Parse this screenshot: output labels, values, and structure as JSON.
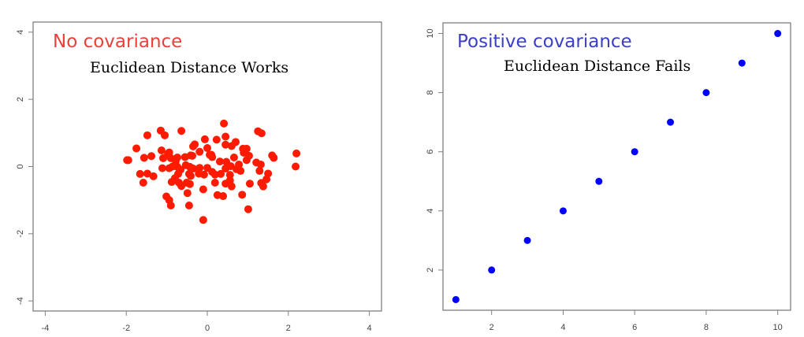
{
  "chart_data": [
    {
      "type": "scatter",
      "title": "No covariance",
      "subtitle": "Euclidean Distance Works",
      "xlabel": "",
      "ylabel": "",
      "xlim": [
        -4.3,
        4.3
      ],
      "ylim": [
        -4.3,
        4.3
      ],
      "xticks": [
        -4,
        -2,
        0,
        2,
        4
      ],
      "yticks": [
        -4,
        -2,
        0,
        2,
        4
      ],
      "grid": false,
      "color": "#ff1a00",
      "title_color": "#e8413c",
      "points": [
        [
          0.41,
          1.28
        ],
        [
          -1.15,
          1.07
        ],
        [
          -0.64,
          1.06
        ],
        [
          -1.48,
          0.93
        ],
        [
          -1.05,
          0.93
        ],
        [
          1.25,
          1.05
        ],
        [
          1.34,
          0.99
        ],
        [
          -0.06,
          0.81
        ],
        [
          0.23,
          0.8
        ],
        [
          0.45,
          0.89
        ],
        [
          0.7,
          0.73
        ],
        [
          0.45,
          0.65
        ],
        [
          0.6,
          0.61
        ],
        [
          -0.31,
          0.66
        ],
        [
          -0.35,
          0.6
        ],
        [
          0.0,
          0.55
        ],
        [
          0.88,
          0.53
        ],
        [
          0.97,
          0.53
        ],
        [
          -1.75,
          0.54
        ],
        [
          -1.13,
          0.48
        ],
        [
          -0.94,
          0.42
        ],
        [
          -0.19,
          0.44
        ],
        [
          -0.41,
          0.33
        ],
        [
          0.1,
          0.35
        ],
        [
          -0.97,
          0.38
        ],
        [
          -1.56,
          0.26
        ],
        [
          0.9,
          0.41
        ],
        [
          1.03,
          0.32
        ],
        [
          1.6,
          0.33
        ],
        [
          1.64,
          0.26
        ],
        [
          2.2,
          0.39
        ],
        [
          -1.98,
          0.19
        ],
        [
          -1.38,
          0.31
        ],
        [
          -1.09,
          0.25
        ],
        [
          -0.9,
          0.25
        ],
        [
          -0.74,
          0.27
        ],
        [
          -0.55,
          0.28
        ],
        [
          -0.37,
          0.32
        ],
        [
          0.06,
          0.35
        ],
        [
          0.12,
          0.28
        ],
        [
          0.31,
          0.15
        ],
        [
          0.47,
          0.14
        ],
        [
          0.66,
          0.27
        ],
        [
          0.97,
          0.19
        ],
        [
          1.21,
          0.12
        ],
        [
          1.32,
          0.06
        ],
        [
          2.18,
          0.0
        ],
        [
          0.58,
          0.01
        ],
        [
          0.78,
          0.06
        ],
        [
          -0.78,
          0.16
        ],
        [
          -1.11,
          -0.05
        ],
        [
          -0.94,
          -0.05
        ],
        [
          -0.86,
          0.0
        ],
        [
          -0.74,
          -0.01
        ],
        [
          -0.66,
          -0.09
        ],
        [
          -0.53,
          0.04
        ],
        [
          -0.43,
          -0.01
        ],
        [
          -0.35,
          -0.06
        ],
        [
          -0.19,
          -0.04
        ],
        [
          0.0,
          -0.04
        ],
        [
          0.45,
          -0.06
        ],
        [
          0.72,
          -0.08
        ],
        [
          0.82,
          -0.13
        ],
        [
          1.29,
          -0.13
        ],
        [
          1.5,
          -0.21
        ],
        [
          -1.66,
          -0.22
        ],
        [
          -1.48,
          -0.21
        ],
        [
          -1.33,
          -0.29
        ],
        [
          -0.72,
          -0.22
        ],
        [
          -0.45,
          -0.22
        ],
        [
          -0.41,
          -0.28
        ],
        [
          -0.21,
          -0.21
        ],
        [
          -0.08,
          -0.24
        ],
        [
          0.12,
          -0.16
        ],
        [
          0.19,
          -0.24
        ],
        [
          0.33,
          -0.22
        ],
        [
          0.56,
          -0.25
        ],
        [
          -1.58,
          -0.48
        ],
        [
          -0.8,
          -0.35
        ],
        [
          -0.88,
          -0.46
        ],
        [
          -0.7,
          -0.48
        ],
        [
          -0.64,
          -0.58
        ],
        [
          -0.51,
          -0.48
        ],
        [
          -0.43,
          -0.52
        ],
        [
          0.19,
          -0.48
        ],
        [
          0.56,
          -0.41
        ],
        [
          0.45,
          -0.51
        ],
        [
          0.6,
          -0.59
        ],
        [
          1.05,
          -0.51
        ],
        [
          1.33,
          -0.49
        ],
        [
          1.38,
          -0.59
        ],
        [
          1.46,
          -0.38
        ],
        [
          -1.01,
          -0.89
        ],
        [
          -0.94,
          -1.0
        ],
        [
          -0.9,
          -1.16
        ],
        [
          -0.45,
          -1.16
        ],
        [
          -0.49,
          -0.79
        ],
        [
          -0.1,
          -0.68
        ],
        [
          0.25,
          -0.85
        ],
        [
          0.39,
          -0.88
        ],
        [
          0.86,
          -0.84
        ],
        [
          1.01,
          -1.27
        ],
        [
          -0.1,
          -1.59
        ],
        [
          -1.95,
          0.19
        ]
      ]
    },
    {
      "type": "scatter",
      "title": "Positive covariance",
      "subtitle": "Euclidean Distance Fails",
      "xlabel": "",
      "ylabel": "",
      "xlim": [
        0.64,
        10.36
      ],
      "ylim": [
        0.64,
        10.36
      ],
      "xticks": [
        2,
        4,
        6,
        8,
        10
      ],
      "yticks": [
        2,
        4,
        6,
        8,
        10
      ],
      "grid": false,
      "color": "#0000ff",
      "title_color": "#3b3fc4",
      "points": [
        [
          1,
          1
        ],
        [
          2,
          2
        ],
        [
          3,
          3
        ],
        [
          4,
          4
        ],
        [
          5,
          5
        ],
        [
          6,
          6
        ],
        [
          7,
          7
        ],
        [
          8,
          8
        ],
        [
          9,
          9
        ],
        [
          10,
          10
        ]
      ]
    }
  ],
  "panels": {
    "left": {
      "title": "No covariance",
      "subtitle": "Euclidean Distance Works"
    },
    "right": {
      "title": "Positive covariance",
      "subtitle": "Euclidean Distance Fails"
    }
  }
}
